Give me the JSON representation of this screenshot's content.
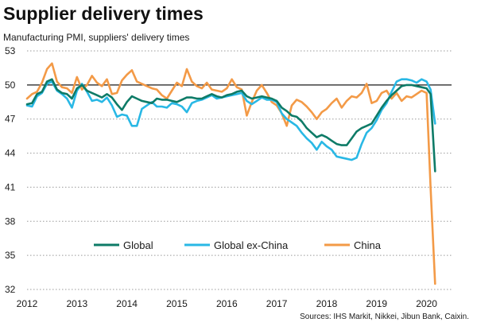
{
  "title": "Supplier delivery times",
  "subtitle": "Manufacturing  PMI, suppliers' delivery times",
  "source": "Sources: IHS Markit, Nikkei, Jibun Bank, Caixin.",
  "chart_data": {
    "type": "line",
    "title": "Supplier delivery times",
    "subtitle": "Manufacturing  PMI, suppliers' delivery times",
    "xlabel": "",
    "ylabel": "",
    "xlim": [
      2012,
      2020.5
    ],
    "ylim": [
      32,
      53
    ],
    "xticks": [
      "2012",
      "2013",
      "2014",
      "2015",
      "2016",
      "2017",
      "2018",
      "2019",
      "2020"
    ],
    "yticks": [
      "53",
      "50",
      "47",
      "44",
      "41",
      "38",
      "35",
      "32"
    ],
    "reference_line": 50,
    "grid": "horizontal dotted",
    "legend_position": "lower-center",
    "series": [
      {
        "name": "Global",
        "color": "#0e7b67",
        "x": [
          2012.0,
          2012.1,
          2012.2,
          2012.3,
          2012.4,
          2012.5,
          2012.6,
          2012.7,
          2012.8,
          2012.9,
          2013.0,
          2013.1,
          2013.2,
          2013.3,
          2013.4,
          2013.5,
          2013.6,
          2013.7,
          2013.8,
          2013.9,
          2014.0,
          2014.1,
          2014.2,
          2014.3,
          2014.4,
          2014.5,
          2014.6,
          2014.7,
          2014.8,
          2014.9,
          2015.0,
          2015.1,
          2015.2,
          2015.3,
          2015.4,
          2015.5,
          2015.6,
          2015.7,
          2015.8,
          2015.9,
          2016.0,
          2016.1,
          2016.2,
          2016.3,
          2016.4,
          2016.5,
          2016.6,
          2016.7,
          2016.8,
          2016.9,
          2017.0,
          2017.1,
          2017.2,
          2017.3,
          2017.4,
          2017.5,
          2017.6,
          2017.7,
          2017.8,
          2017.9,
          2018.0,
          2018.1,
          2018.2,
          2018.3,
          2018.4,
          2018.5,
          2018.6,
          2018.7,
          2018.8,
          2018.9,
          2019.0,
          2019.1,
          2019.2,
          2019.3,
          2019.4,
          2019.5,
          2019.6,
          2019.7,
          2019.8,
          2019.9,
          2020.0,
          2020.08,
          2020.17
        ],
        "y": [
          48.3,
          48.4,
          49.2,
          49.4,
          50.3,
          50.5,
          49.6,
          49.3,
          49.2,
          48.8,
          49.7,
          50.0,
          49.5,
          49.3,
          49.1,
          48.9,
          49.2,
          48.9,
          48.3,
          47.8,
          48.5,
          49.0,
          48.8,
          48.6,
          48.5,
          48.4,
          48.8,
          48.7,
          48.7,
          48.6,
          48.5,
          48.7,
          48.9,
          48.9,
          48.8,
          48.8,
          49.0,
          49.2,
          49.0,
          48.9,
          49.1,
          49.2,
          49.4,
          49.5,
          49.0,
          48.8,
          48.9,
          49.0,
          48.9,
          48.8,
          48.6,
          48.0,
          47.7,
          47.3,
          47.2,
          46.8,
          46.2,
          45.8,
          45.4,
          45.6,
          45.4,
          45.1,
          44.8,
          44.7,
          44.7,
          45.3,
          45.9,
          46.2,
          46.4,
          46.6,
          47.3,
          48.0,
          48.6,
          49.1,
          49.5,
          49.9,
          50.0,
          50.0,
          49.9,
          49.8,
          49.7,
          49.2,
          42.4
        ]
      },
      {
        "name": "Global ex-China",
        "color": "#29b8e5",
        "x": [
          2012.0,
          2012.1,
          2012.2,
          2012.3,
          2012.4,
          2012.5,
          2012.6,
          2012.7,
          2012.8,
          2012.9,
          2013.0,
          2013.1,
          2013.2,
          2013.3,
          2013.4,
          2013.5,
          2013.6,
          2013.7,
          2013.8,
          2013.9,
          2014.0,
          2014.1,
          2014.2,
          2014.3,
          2014.4,
          2014.5,
          2014.6,
          2014.7,
          2014.8,
          2014.9,
          2015.0,
          2015.1,
          2015.2,
          2015.3,
          2015.4,
          2015.5,
          2015.6,
          2015.7,
          2015.8,
          2015.9,
          2016.0,
          2016.1,
          2016.2,
          2016.3,
          2016.4,
          2016.5,
          2016.6,
          2016.7,
          2016.8,
          2016.9,
          2017.0,
          2017.1,
          2017.2,
          2017.3,
          2017.4,
          2017.5,
          2017.6,
          2017.7,
          2017.8,
          2017.9,
          2018.0,
          2018.1,
          2018.2,
          2018.3,
          2018.4,
          2018.5,
          2018.6,
          2018.7,
          2018.8,
          2018.9,
          2019.0,
          2019.1,
          2019.2,
          2019.3,
          2019.4,
          2019.5,
          2019.6,
          2019.7,
          2019.8,
          2019.9,
          2020.0,
          2020.08,
          2020.17
        ],
        "y": [
          48.2,
          48.1,
          49.0,
          49.3,
          50.1,
          50.3,
          49.5,
          49.2,
          48.8,
          48.0,
          49.5,
          50.1,
          49.4,
          48.6,
          48.7,
          48.5,
          48.9,
          48.2,
          47.2,
          47.4,
          47.3,
          46.4,
          46.4,
          47.9,
          48.2,
          48.5,
          48.1,
          48.1,
          48.0,
          48.4,
          48.3,
          48.1,
          47.6,
          48.4,
          48.6,
          48.7,
          48.9,
          49.1,
          48.8,
          48.9,
          49.0,
          49.1,
          49.2,
          49.3,
          48.6,
          48.3,
          48.6,
          48.9,
          48.7,
          48.7,
          48.5,
          47.5,
          47.0,
          46.7,
          46.4,
          45.8,
          45.3,
          44.9,
          44.3,
          45.0,
          44.6,
          44.3,
          43.7,
          43.6,
          43.5,
          43.4,
          43.6,
          44.8,
          45.8,
          46.2,
          46.9,
          47.8,
          48.4,
          49.4,
          50.3,
          50.5,
          50.5,
          50.4,
          50.2,
          50.5,
          50.3,
          49.6,
          46.6
        ]
      },
      {
        "name": "China",
        "color": "#f39a47",
        "x": [
          2012.0,
          2012.1,
          2012.2,
          2012.3,
          2012.4,
          2012.5,
          2012.6,
          2012.7,
          2012.8,
          2012.9,
          2013.0,
          2013.1,
          2013.2,
          2013.3,
          2013.4,
          2013.5,
          2013.6,
          2013.7,
          2013.8,
          2013.9,
          2014.0,
          2014.1,
          2014.2,
          2014.3,
          2014.4,
          2014.5,
          2014.6,
          2014.7,
          2014.8,
          2014.9,
          2015.0,
          2015.1,
          2015.2,
          2015.3,
          2015.4,
          2015.5,
          2015.6,
          2015.7,
          2015.8,
          2015.9,
          2016.0,
          2016.1,
          2016.2,
          2016.3,
          2016.4,
          2016.5,
          2016.6,
          2016.7,
          2016.8,
          2016.9,
          2017.0,
          2017.1,
          2017.2,
          2017.3,
          2017.4,
          2017.5,
          2017.6,
          2017.7,
          2017.8,
          2017.9,
          2018.0,
          2018.1,
          2018.2,
          2018.3,
          2018.4,
          2018.5,
          2018.6,
          2018.7,
          2018.8,
          2018.9,
          2019.0,
          2019.1,
          2019.2,
          2019.3,
          2019.4,
          2019.5,
          2019.6,
          2019.7,
          2019.8,
          2019.9,
          2020.0,
          2020.08,
          2020.17
        ],
        "y": [
          48.8,
          49.2,
          49.4,
          50.2,
          51.4,
          51.9,
          50.3,
          49.8,
          49.7,
          49.3,
          50.7,
          49.6,
          50.0,
          50.8,
          50.2,
          49.9,
          50.5,
          49.2,
          49.3,
          50.4,
          50.9,
          51.3,
          50.3,
          50.1,
          49.9,
          49.7,
          49.6,
          49.1,
          48.8,
          49.5,
          50.2,
          49.9,
          51.4,
          50.3,
          49.9,
          49.7,
          50.2,
          49.6,
          49.5,
          49.4,
          49.7,
          50.5,
          49.8,
          49.6,
          47.3,
          48.5,
          49.5,
          50.0,
          49.3,
          48.5,
          48.2,
          47.5,
          46.4,
          48.2,
          48.7,
          48.5,
          48.1,
          47.6,
          47.0,
          47.6,
          47.9,
          48.4,
          48.8,
          48.0,
          48.6,
          49.0,
          48.9,
          49.3,
          50.1,
          48.4,
          48.6,
          49.3,
          49.5,
          48.8,
          49.3,
          48.6,
          49.0,
          48.9,
          49.2,
          49.5,
          49.3,
          41.0,
          32.5
        ]
      }
    ]
  }
}
